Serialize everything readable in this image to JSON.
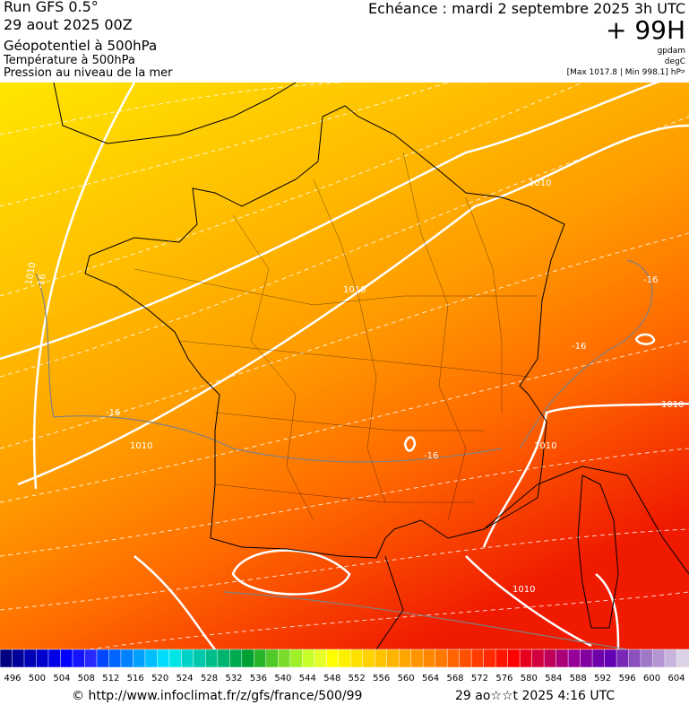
{
  "header": {
    "run": "Run GFS 0.5°",
    "date": "29 aout 2025 00Z",
    "field1": "Géopotentiel à 500hPa",
    "field2": "Température à 500hPa",
    "field3": "Pression au niveau de la mer",
    "forecast": "Echéance : mardi 2 septembre 2025 3h UTC",
    "lead": "+ 99H",
    "unit1": "gpdam",
    "unit2": "degC",
    "pressure": "[Max 1017.8 | Min 998.1] hPa"
  },
  "map": {
    "labels": [
      "1010",
      "1010",
      "1010",
      "1010",
      "1010",
      "1010",
      "1010",
      "-16",
      "-16",
      "-16",
      "-16",
      "-16"
    ]
  },
  "colorbar": {
    "labels": [
      496,
      500,
      504,
      508,
      512,
      516,
      520,
      524,
      528,
      532,
      536,
      540,
      544,
      548,
      552,
      556,
      560,
      564,
      568,
      572,
      576,
      580,
      584,
      588,
      592,
      596,
      600,
      604
    ],
    "colors": [
      "#000080",
      "#00009a",
      "#0000b4",
      "#0000cd",
      "#0000e6",
      "#0000ff",
      "#1414ff",
      "#2828ff",
      "#0046ff",
      "#0064ff",
      "#0082ff",
      "#00a0ff",
      "#00beff",
      "#00dcff",
      "#00e6e6",
      "#00d2c8",
      "#00c8aa",
      "#00be8c",
      "#00b46e",
      "#00aa50",
      "#00a032",
      "#28b428",
      "#50c828",
      "#78dc28",
      "#a0f028",
      "#c8ff28",
      "#e6ff28",
      "#ffff00",
      "#fff000",
      "#ffe100",
      "#ffd200",
      "#ffc300",
      "#ffb400",
      "#ffa500",
      "#ff9600",
      "#ff8700",
      "#ff7800",
      "#ff6400",
      "#ff5000",
      "#ff3c00",
      "#ff2800",
      "#ff1400",
      "#ff0000",
      "#e6001e",
      "#d2003c",
      "#be005a",
      "#aa0078",
      "#960096",
      "#8200a0",
      "#6e00aa",
      "#6400b4",
      "#7828b4",
      "#8c50be",
      "#a078c8",
      "#b496d2",
      "#c8b4dc",
      "#dcd2e6"
    ]
  },
  "footer": {
    "url": "© http://www.infoclimat.fr/z/gfs/france/500/99",
    "time": "29 ao☆☆t 2025  4:16 UTC"
  }
}
